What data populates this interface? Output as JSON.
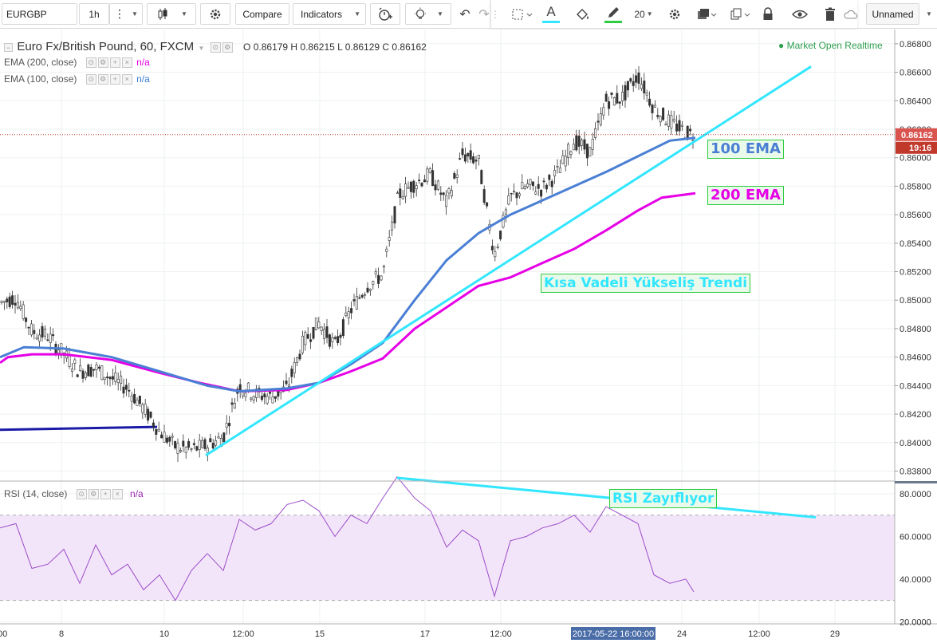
{
  "toolbar": {
    "symbol": "EURGBP",
    "interval": "1h",
    "compare_label": "Compare",
    "indicators_label": "Indicators",
    "line_width": "20",
    "layout_name": "Unnamed"
  },
  "legend": {
    "title": "Euro Fx/British Pound, 60, FXCM",
    "ohlc": "O 0.86179 H 0.86215 L 0.86129 C 0.86162",
    "ema200": "EMA (200, close)",
    "ema100": "EMA (100, close)",
    "na": "n/a",
    "market_status": "● Market Open  Realtime",
    "rsi": "RSI (14, close)"
  },
  "price_badge": "0.86162",
  "countdown_badge": "19:16",
  "crosshair_date": "2017-05-22 16:00:00",
  "annotations": {
    "ema100_label": "100 EMA",
    "ema200_label": "200 EMA",
    "trend_label": "Kısa Vadeli Yükseliş Trendi",
    "rsi_label": "RSI Zayıflıyor"
  },
  "colors": {
    "ema100": "#4a7fd4",
    "ema200": "#e600e6",
    "trendline": "#33e6ff",
    "hline": "#1a1aa6",
    "rsi_line": "#9b4dca",
    "rsi_band": "#f3e5f9",
    "candle": "#333333",
    "price_badge": "#d9534f",
    "callout_border": "#2ecc40",
    "callout_bg": "#eafaea",
    "market_open": "#2e9e4e"
  },
  "icons": [
    "save-icon",
    "settings-icon",
    "add-icon",
    "close-icon",
    "candles-icon",
    "gear-icon",
    "alarm-icon",
    "lightbulb-icon",
    "undo-icon",
    "redo-icon",
    "crop-icon",
    "text-color-icon",
    "fill-icon",
    "pencil-icon",
    "lock-icon",
    "eye-icon",
    "trash-icon",
    "cloud-icon"
  ],
  "chart_data": [
    {
      "type": "line",
      "title": "Euro Fx/British Pound, 60, FXCM",
      "x_tick_labels": [
        "8",
        "10",
        "12:00",
        "15",
        "17",
        "12:00",
        "24",
        "12:00",
        "29"
      ],
      "y_tick_labels": [
        "0.86800",
        "0.86600",
        "0.86400",
        "0.86200",
        "0.86000",
        "0.85800",
        "0.85600",
        "0.85400",
        "0.85200",
        "0.85000",
        "0.84800",
        "0.84600",
        "0.84400",
        "0.84200",
        "0.84000",
        "0.83800"
      ],
      "ylim": [
        0.8373,
        0.869
      ],
      "ohlc_last": {
        "open": 0.86179,
        "high": 0.86215,
        "low": 0.86129,
        "close": 0.86162
      },
      "series": [
        {
          "name": "EMA (200, close)",
          "type": "line",
          "x": [
            0,
            10,
            40,
            80,
            140,
            200,
            250,
            300,
            360,
            400,
            440,
            480,
            520,
            560,
            600,
            640,
            680,
            720,
            760,
            800,
            830,
            872
          ],
          "y": [
            0.8456,
            0.846,
            0.8462,
            0.8462,
            0.8458,
            0.8449,
            0.8442,
            0.8436,
            0.8437,
            0.8442,
            0.845,
            0.8459,
            0.848,
            0.8495,
            0.851,
            0.8516,
            0.8526,
            0.8536,
            0.8549,
            0.8563,
            0.8572,
            0.8575
          ]
        },
        {
          "name": "EMA (100, close)",
          "type": "line",
          "x": [
            0,
            30,
            80,
            140,
            200,
            260,
            300,
            360,
            400,
            440,
            480,
            520,
            560,
            600,
            640,
            680,
            720,
            760,
            800,
            840,
            872
          ],
          "y": [
            0.846,
            0.8467,
            0.8466,
            0.846,
            0.845,
            0.844,
            0.8436,
            0.8438,
            0.8442,
            0.8455,
            0.847,
            0.85,
            0.8528,
            0.8547,
            0.856,
            0.857,
            0.858,
            0.859,
            0.8601,
            0.8612,
            0.8614
          ]
        },
        {
          "name": "",
          "type": "line",
          "x": [
            258,
            1017
          ],
          "y": [
            0.8391,
            0.8664
          ]
        },
        {
          "name": "",
          "type": "line",
          "x": [
            0,
            197
          ],
          "y": [
            0.8409,
            0.8411
          ]
        },
        {
          "name": "",
          "type": "candlestick",
          "x": [
            0,
            20,
            40,
            60,
            80,
            100,
            120,
            140,
            160,
            180,
            200,
            220,
            240,
            260,
            280,
            300,
            320,
            340,
            360,
            380,
            400,
            420,
            440,
            460,
            480,
            500,
            520,
            540,
            560,
            580,
            600,
            620,
            640,
            660,
            680,
            700,
            720,
            740,
            760,
            780,
            800,
            820,
            840,
            860,
            870
          ],
          "y": [
            0.8498,
            0.8502,
            0.8478,
            0.8475,
            0.8462,
            0.845,
            0.8452,
            0.8445,
            0.8438,
            0.8424,
            0.8408,
            0.8397,
            0.8395,
            0.8398,
            0.8404,
            0.844,
            0.8434,
            0.8432,
            0.8438,
            0.847,
            0.8484,
            0.8468,
            0.8493,
            0.851,
            0.8518,
            0.8574,
            0.8582,
            0.8588,
            0.8568,
            0.8602,
            0.8598,
            0.8532,
            0.8572,
            0.858,
            0.8578,
            0.859,
            0.8612,
            0.8604,
            0.864,
            0.8642,
            0.8658,
            0.8635,
            0.8625,
            0.8618,
            0.8616
          ]
        }
      ]
    },
    {
      "type": "line",
      "title": "RSI (14, close)",
      "y_tick_labels": [
        "80.0000",
        "60.0000",
        "40.0000",
        "20.0000"
      ],
      "ylim": [
        19,
        86
      ],
      "band": [
        30,
        70
      ],
      "series": [
        {
          "name": "RSI (14, close)",
          "x": [
            0,
            20,
            40,
            60,
            80,
            100,
            120,
            140,
            160,
            180,
            200,
            220,
            240,
            260,
            280,
            300,
            320,
            340,
            360,
            380,
            400,
            420,
            440,
            460,
            480,
            498,
            520,
            540,
            560,
            580,
            600,
            620,
            640,
            660,
            680,
            700,
            720,
            740,
            760,
            780,
            800,
            820,
            840,
            860,
            870
          ],
          "y": [
            64,
            66,
            45,
            47,
            54,
            38,
            56,
            42,
            47,
            35,
            42,
            30,
            44,
            52,
            44,
            68,
            63,
            66,
            75,
            77,
            72,
            60,
            70,
            66,
            78,
            88,
            78,
            72,
            55,
            63,
            58,
            32,
            58,
            60,
            64,
            66,
            70,
            62,
            74,
            70,
            66,
            42,
            38,
            40,
            34
          ]
        },
        {
          "name": "",
          "type": "line",
          "x": [
            498,
            1023
          ],
          "y": [
            87.5,
            69
          ]
        }
      ]
    }
  ]
}
